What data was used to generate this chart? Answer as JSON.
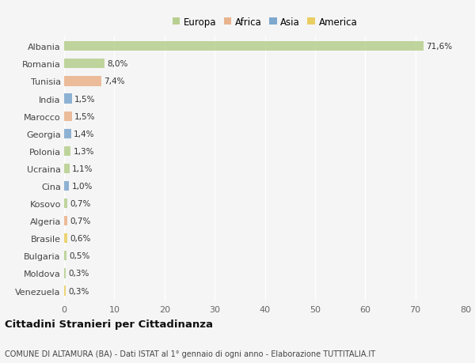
{
  "countries": [
    "Albania",
    "Romania",
    "Tunisia",
    "India",
    "Marocco",
    "Georgia",
    "Polonia",
    "Ucraina",
    "Cina",
    "Kosovo",
    "Algeria",
    "Brasile",
    "Bulgaria",
    "Moldova",
    "Venezuela"
  ],
  "values": [
    71.6,
    8.0,
    7.4,
    1.5,
    1.5,
    1.4,
    1.3,
    1.1,
    1.0,
    0.7,
    0.7,
    0.6,
    0.5,
    0.3,
    0.3
  ],
  "labels": [
    "71,6%",
    "8,0%",
    "7,4%",
    "1,5%",
    "1,5%",
    "1,4%",
    "1,3%",
    "1,1%",
    "1,0%",
    "0,7%",
    "0,7%",
    "0,6%",
    "0,5%",
    "0,3%",
    "0,3%"
  ],
  "continents": [
    "Europa",
    "Europa",
    "Africa",
    "Asia",
    "Africa",
    "Asia",
    "Europa",
    "Europa",
    "Asia",
    "Europa",
    "Africa",
    "America",
    "Europa",
    "Europa",
    "America"
  ],
  "colors": {
    "Europa": "#adc97e",
    "Africa": "#e8a87c",
    "Asia": "#6b9bc8",
    "America": "#e8c84a"
  },
  "background_color": "#f5f5f5",
  "title": "Cittadini Stranieri per Cittadinanza",
  "subtitle": "COMUNE DI ALTAMURA (BA) - Dati ISTAT al 1° gennaio di ogni anno - Elaborazione TUTTITALIA.IT",
  "xlim": [
    0,
    80
  ],
  "xticks": [
    0,
    10,
    20,
    30,
    40,
    50,
    60,
    70,
    80
  ],
  "legend_order": [
    "Europa",
    "Africa",
    "Asia",
    "America"
  ]
}
